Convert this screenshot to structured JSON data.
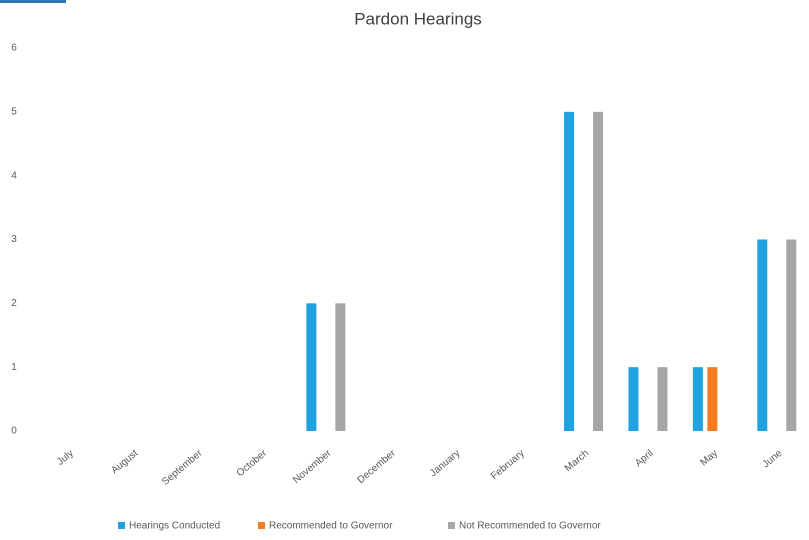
{
  "chart_data": {
    "type": "bar",
    "title": "Pardon Hearings",
    "categories": [
      "July",
      "August",
      "September",
      "October",
      "November",
      "December",
      "January",
      "February",
      "March",
      "April",
      "May",
      "June"
    ],
    "series": [
      {
        "name": "Hearings Conducted",
        "color": "#1fa3e0",
        "values": [
          0,
          0,
          0,
          0,
          2,
          0,
          0,
          0,
          5,
          1,
          1,
          3
        ]
      },
      {
        "name": "Recommended to Governor",
        "color": "#f47b20",
        "values": [
          0,
          0,
          0,
          0,
          0,
          0,
          0,
          0,
          0,
          0,
          1,
          0
        ]
      },
      {
        "name": "Not Recommended to Governor",
        "color": "#a6a6a6",
        "values": [
          0,
          0,
          0,
          0,
          2,
          0,
          0,
          0,
          5,
          1,
          0,
          3
        ]
      }
    ],
    "ylim": [
      0,
      6
    ],
    "yticks": [
      0,
      1,
      2,
      3,
      4,
      5,
      6
    ],
    "grid": false,
    "legend": "bottom"
  }
}
